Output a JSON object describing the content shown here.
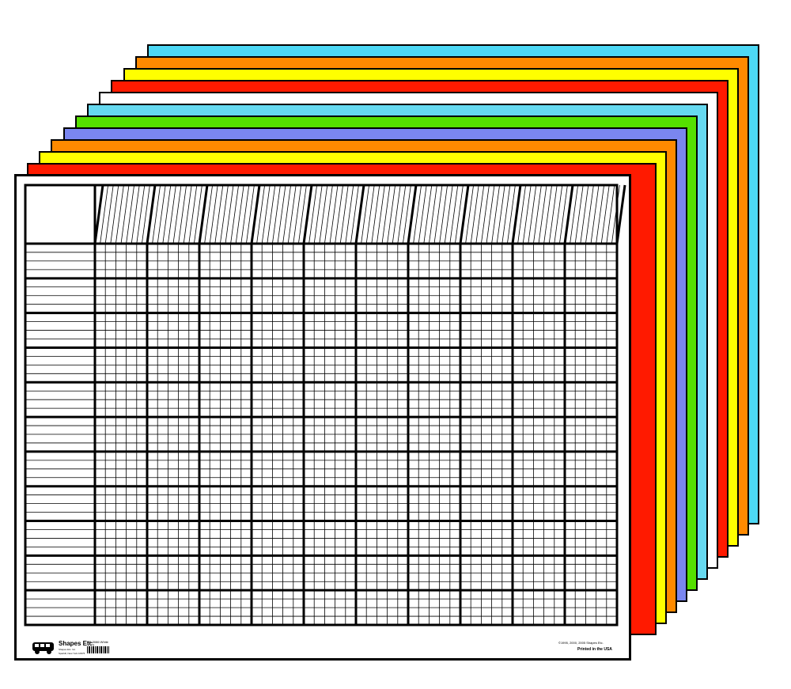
{
  "sheets": {
    "colors": [
      "#4dd8f5",
      "#ff8a00",
      "#ffff00",
      "#ff1a00",
      "#ffffff",
      "#66d9f0",
      "#55e000",
      "#7a86f0",
      "#ff8a00",
      "#ffff00",
      "#ff1a00"
    ]
  },
  "chart": {
    "border_color": "#000000",
    "background": "#ffffff",
    "columns": 10,
    "subdivisions_per_column": 5,
    "row_groups": 11,
    "lines_per_group": 4
  },
  "footer": {
    "brand": "Shapes Etc.",
    "brand_line2": "Shapes Etc. Inc.",
    "brand_line3": "Sparkill, New York 10976",
    "product": "SE-3086  White",
    "copyright": "©1995, 2000, 2005 Shapes Etc.",
    "printed": "Printed in the USA"
  },
  "icons": {
    "logo": "bus-logo-icon",
    "barcode": "barcode-icon"
  }
}
